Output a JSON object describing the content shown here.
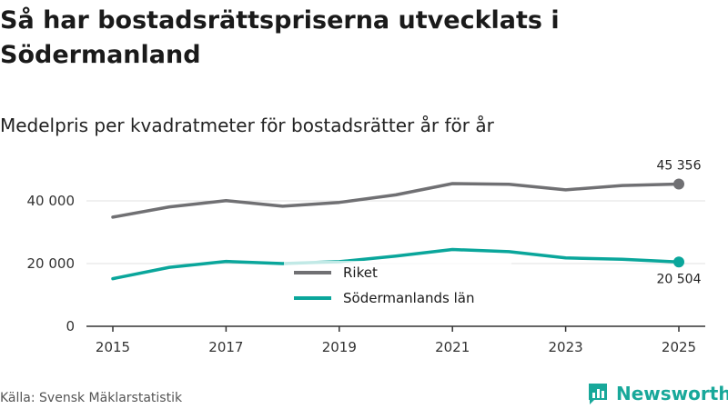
{
  "header": {
    "title": "Så har bostadsrättspriserna utvecklats i Södermanland",
    "subtitle": "Medelpris per kvadratmeter för bostadsrätter år för år"
  },
  "footer": {
    "source": "Källa: Svensk Mäklarstatistik",
    "brand": "Newsworthy"
  },
  "colors": {
    "riket": "#707073",
    "lan": "#0aa69b",
    "grid": "#e0e0e0",
    "axis": "#333333"
  },
  "chart_data": {
    "type": "line",
    "title": "Så har bostadsrättspriserna utvecklats i Södermanland",
    "subtitle": "Medelpris per kvadratmeter för bostadsrätter år för år",
    "xlabel": "",
    "ylabel": "",
    "x": [
      2015,
      2016,
      2017,
      2018,
      2019,
      2020,
      2021,
      2022,
      2023,
      2024,
      2025
    ],
    "x_tick_labels": [
      "2015",
      "2017",
      "2019",
      "2021",
      "2023",
      "2025"
    ],
    "y_ticks": [
      0,
      20000,
      40000
    ],
    "y_tick_labels": [
      "0",
      "20 000",
      "40 000"
    ],
    "ylim": [
      0,
      46000
    ],
    "grid": true,
    "legend_position": "center",
    "series": [
      {
        "name": "Riket",
        "values": [
          34800,
          38100,
          40100,
          38300,
          39500,
          41900,
          45500,
          45300,
          43500,
          44900,
          45356
        ],
        "end_label": "45 356"
      },
      {
        "name": "Södermanlands län",
        "values": [
          15200,
          18800,
          20700,
          20000,
          20600,
          22400,
          24500,
          23800,
          21800,
          21400,
          20504
        ],
        "end_label": "20 504"
      }
    ]
  }
}
